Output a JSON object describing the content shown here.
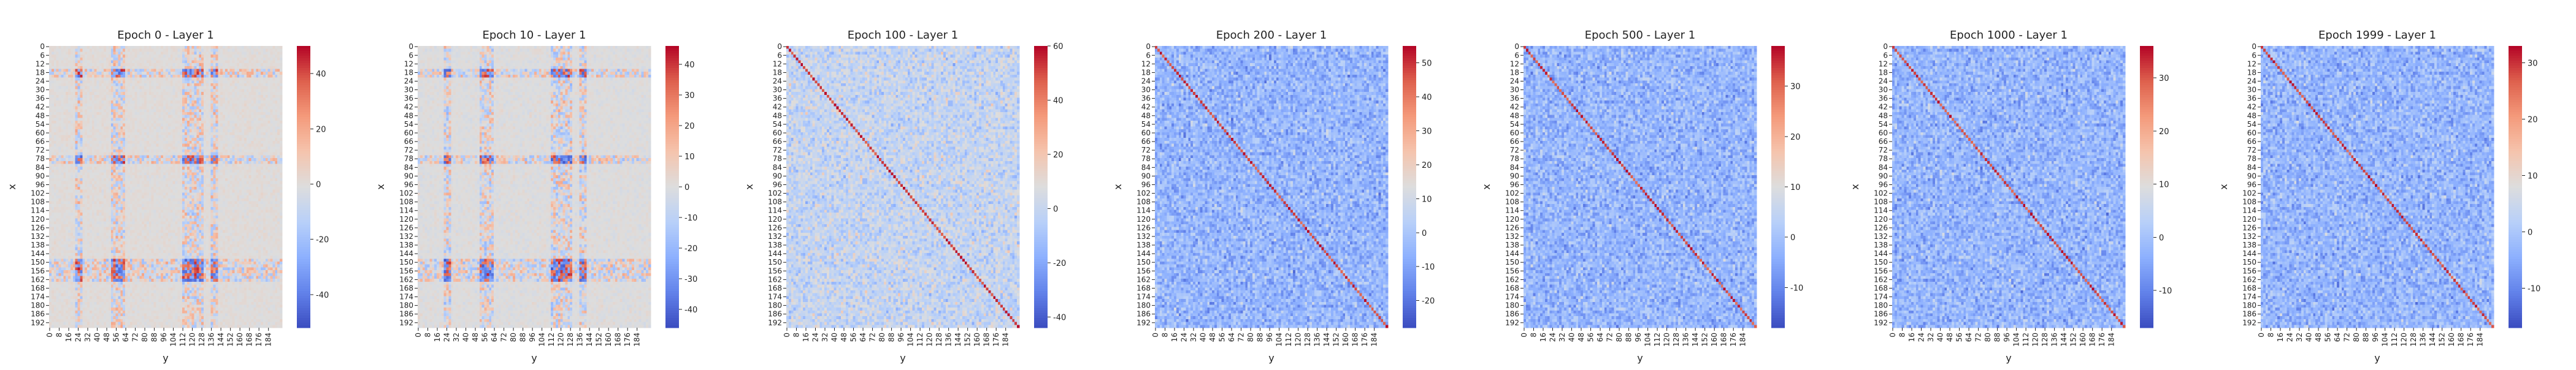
{
  "chart_data": [
    {
      "type": "heatmap",
      "title": "Epoch 0 - Layer 1",
      "xlabel": "y",
      "ylabel": "x",
      "grid_size": 196,
      "colormap": "coolwarm",
      "colorbar_range": [
        -52,
        50
      ],
      "colorbar_ticks": [
        -40,
        -20,
        0,
        20,
        40
      ],
      "diagonal": false,
      "banded": true,
      "row_band_centers": [
        18,
        78,
        150,
        156,
        160
      ],
      "col_band_centers": [
        24,
        54,
        60,
        114,
        120,
        126,
        138
      ]
    },
    {
      "type": "heatmap",
      "title": "Epoch 10 - Layer 1",
      "xlabel": "y",
      "ylabel": "x",
      "grid_size": 196,
      "colormap": "coolwarm",
      "colorbar_range": [
        -46,
        46
      ],
      "colorbar_ticks": [
        -40,
        -30,
        -20,
        -10,
        0,
        10,
        20,
        30,
        40
      ],
      "diagonal": false,
      "banded": true,
      "row_band_centers": [
        18,
        78,
        150,
        156,
        160
      ],
      "col_band_centers": [
        24,
        54,
        60,
        114,
        120,
        126,
        138
      ]
    },
    {
      "type": "heatmap",
      "title": "Epoch 100 - Layer 1",
      "xlabel": "y",
      "ylabel": "x",
      "grid_size": 196,
      "colormap": "coolwarm",
      "colorbar_range": [
        -44,
        60
      ],
      "colorbar_ticks": [
        -40,
        -20,
        0,
        20,
        40,
        60
      ],
      "diagonal": true,
      "banded": false
    },
    {
      "type": "heatmap",
      "title": "Epoch 200 - Layer 1",
      "xlabel": "y",
      "ylabel": "x",
      "grid_size": 196,
      "colormap": "coolwarm",
      "colorbar_range": [
        -28,
        55
      ],
      "colorbar_ticks": [
        -20,
        -10,
        0,
        10,
        20,
        30,
        40,
        50
      ],
      "diagonal": true,
      "banded": false
    },
    {
      "type": "heatmap",
      "title": "Epoch 500 - Layer 1",
      "xlabel": "y",
      "ylabel": "x",
      "grid_size": 196,
      "colormap": "coolwarm",
      "colorbar_range": [
        -18,
        38
      ],
      "colorbar_ticks": [
        -10,
        0,
        10,
        20,
        30
      ],
      "diagonal": true,
      "banded": false
    },
    {
      "type": "heatmap",
      "title": "Epoch 1000 - Layer 1",
      "xlabel": "y",
      "ylabel": "x",
      "grid_size": 196,
      "colormap": "coolwarm",
      "colorbar_range": [
        -17,
        36
      ],
      "colorbar_ticks": [
        -10,
        0,
        10,
        20,
        30
      ],
      "diagonal": true,
      "banded": false
    },
    {
      "type": "heatmap",
      "title": "Epoch 1999 - Layer 1",
      "xlabel": "y",
      "ylabel": "x",
      "grid_size": 196,
      "colormap": "coolwarm",
      "colorbar_range": [
        -17,
        33
      ],
      "colorbar_ticks": [
        -10,
        0,
        10,
        20,
        30
      ],
      "diagonal": true,
      "banded": false
    }
  ],
  "y_tick_labels": [
    "0",
    "6",
    "12",
    "18",
    "24",
    "30",
    "36",
    "42",
    "48",
    "54",
    "60",
    "66",
    "72",
    "78",
    "84",
    "90",
    "96",
    "102",
    "108",
    "114",
    "120",
    "126",
    "132",
    "138",
    "144",
    "150",
    "156",
    "162",
    "168",
    "174",
    "180",
    "186",
    "192"
  ],
  "x_tick_labels": [
    "0",
    "8",
    "16",
    "24",
    "32",
    "40",
    "48",
    "56",
    "64",
    "72",
    "80",
    "88",
    "96",
    "104",
    "112",
    "120",
    "128",
    "136",
    "144",
    "152",
    "160",
    "168",
    "176",
    "184"
  ]
}
